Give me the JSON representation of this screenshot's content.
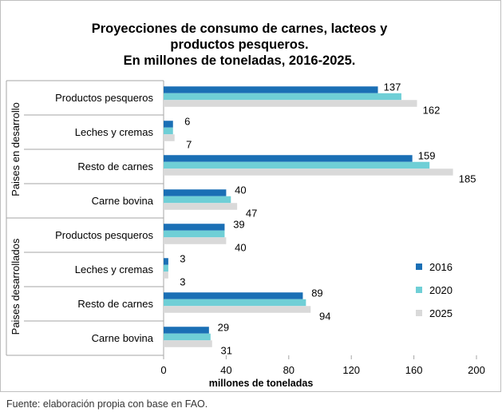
{
  "chart_data": {
    "type": "bar",
    "orientation": "horizontal",
    "title": [
      "Proyecciones de consumo de carnes, lacteos y",
      "productos pesqueros.",
      "En millones de toneladas, 2016-2025."
    ],
    "xlabel": "millones de toneladas",
    "xlim": [
      0,
      200
    ],
    "xticks": [
      0,
      40,
      80,
      120,
      160,
      200
    ],
    "grid": false,
    "legend_position": "right",
    "groups": [
      {
        "name": "Paises en desarrollo",
        "categories": [
          "Productos pesqueros",
          "Leches y cremas",
          "Resto de carnes",
          "Carne bovina"
        ]
      },
      {
        "name": "Paises desarrollados",
        "categories": [
          "Productos pesqueros",
          "Leches y cremas",
          "Resto de carnes",
          "Carne bovina"
        ]
      }
    ],
    "series": [
      {
        "name": "2016",
        "color": "#1a6fb5",
        "values": [
          [
            137,
            6,
            159,
            40
          ],
          [
            39,
            3,
            89,
            29
          ]
        ],
        "labels": [
          [
            "137",
            "6",
            "159",
            "40"
          ],
          [
            "39",
            "3",
            "89",
            "29"
          ]
        ]
      },
      {
        "name": "2020",
        "color": "#6fcfd6",
        "values": [
          [
            152,
            6,
            170,
            43
          ],
          [
            39,
            3,
            91,
            30
          ]
        ],
        "labels": [
          [
            "",
            "",
            "",
            ""
          ],
          [
            "",
            "",
            "",
            ""
          ]
        ]
      },
      {
        "name": "2025",
        "color": "#d9d9d9",
        "values": [
          [
            162,
            7,
            185,
            47
          ],
          [
            40,
            3,
            94,
            31
          ]
        ],
        "labels": [
          [
            "162",
            "7",
            "185",
            "47"
          ],
          [
            "40",
            "3",
            "94",
            "31"
          ]
        ]
      }
    ]
  },
  "footer": "Fuente: elaboración propia con base en FAO."
}
